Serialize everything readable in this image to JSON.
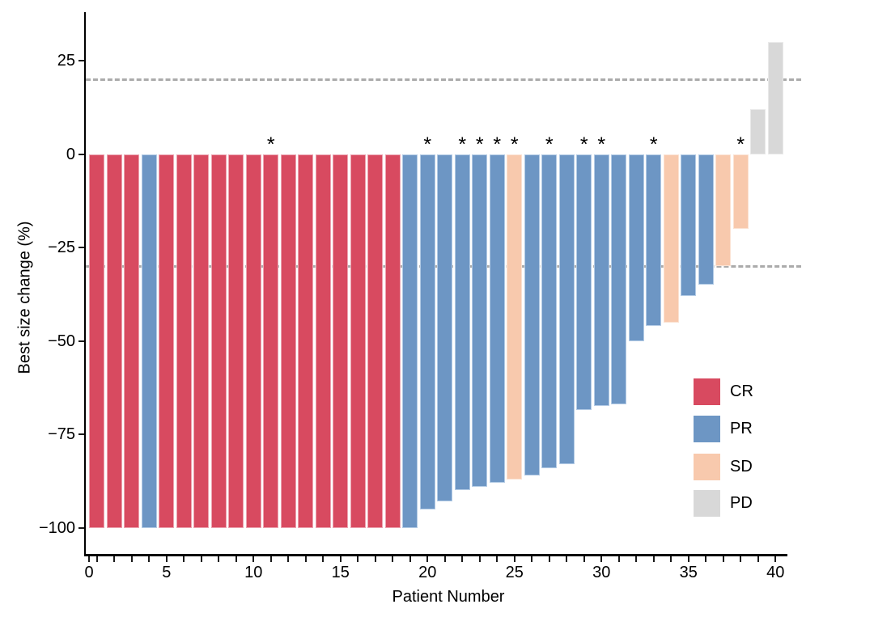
{
  "figure": {
    "kind": "oncology-waterfall-plot",
    "background": "#ffffff"
  },
  "chart_data": {
    "type": "bar",
    "title": "",
    "xlabel": "Patient Number",
    "ylabel": "Best size change (%)",
    "x": [
      1,
      2,
      3,
      4,
      5,
      6,
      7,
      8,
      9,
      10,
      11,
      12,
      13,
      14,
      15,
      16,
      17,
      18,
      19,
      20,
      21,
      22,
      23,
      24,
      25,
      26,
      27,
      28,
      29,
      30,
      31,
      32,
      33,
      34,
      35,
      36,
      37,
      38,
      39,
      40
    ],
    "values": [
      -100,
      -100,
      -100,
      -100,
      -100,
      -100,
      -100,
      -100,
      -100,
      -100,
      -100,
      -100,
      -100,
      -100,
      -100,
      -100,
      -100,
      -100,
      -100,
      -95,
      -93,
      -90,
      -89,
      -88,
      -87,
      -86,
      -84,
      -83,
      -68.5,
      -67.5,
      -67,
      -50,
      -46,
      -45,
      -38,
      -35,
      -30,
      -20,
      12,
      30
    ],
    "response": [
      "CR",
      "CR",
      "CR",
      "PR",
      "CR",
      "CR",
      "CR",
      "CR",
      "CR",
      "CR",
      "CR",
      "CR",
      "CR",
      "CR",
      "CR",
      "CR",
      "CR",
      "CR",
      "PR",
      "PR",
      "PR",
      "PR",
      "PR",
      "PR",
      "SD",
      "PR",
      "PR",
      "PR",
      "PR",
      "PR",
      "PR",
      "PR",
      "PR",
      "SD",
      "PR",
      "PR",
      "SD",
      "SD",
      "PD",
      "PD"
    ],
    "asterisk_patients": [
      11,
      20,
      22,
      23,
      24,
      25,
      27,
      29,
      30,
      33,
      38
    ],
    "marker_symbol": "*",
    "y_tick_values": [
      25,
      0,
      -25,
      -50,
      -75,
      -100
    ],
    "y_tick_labels": [
      "25",
      "0",
      "−25",
      "−50",
      "−75",
      "−100"
    ],
    "x_tick_labels": [
      "0",
      "5",
      "10",
      "15",
      "20",
      "25",
      "30",
      "35",
      "40"
    ],
    "x_major_tick_values": [
      0,
      5,
      10,
      15,
      20,
      25,
      30,
      35,
      40
    ],
    "x_minor_tick_interval": 1,
    "x_max": 40,
    "ylim": [
      -107,
      38
    ],
    "grid": false,
    "reference_lines": [
      {
        "y": 20,
        "style": "dashed",
        "color": "#ABABAB"
      },
      {
        "y": -30,
        "style": "dashed",
        "color": "#ABABAB"
      }
    ],
    "legend_position": "right-middle"
  },
  "legend": {
    "items": [
      {
        "label": "CR",
        "color": "#D84A60"
      },
      {
        "label": "PR",
        "color": "#6D96C4"
      },
      {
        "label": "SD",
        "color": "#F8C9AD"
      },
      {
        "label": "PD",
        "color": "#D8D8D8"
      }
    ]
  },
  "palette": {
    "fill": {
      "CR": "#D84A60",
      "PR": "#6D96C4",
      "SD": "#F8C9AD",
      "PD": "#D8D8D8"
    },
    "stroke": {
      "CR": "#ECA3B0",
      "PR": "#B3CBE5",
      "SD": "#FBE2D2",
      "PD": "#E9E9E9"
    },
    "reference_line": "#ABABAB",
    "axis": "#000000"
  }
}
